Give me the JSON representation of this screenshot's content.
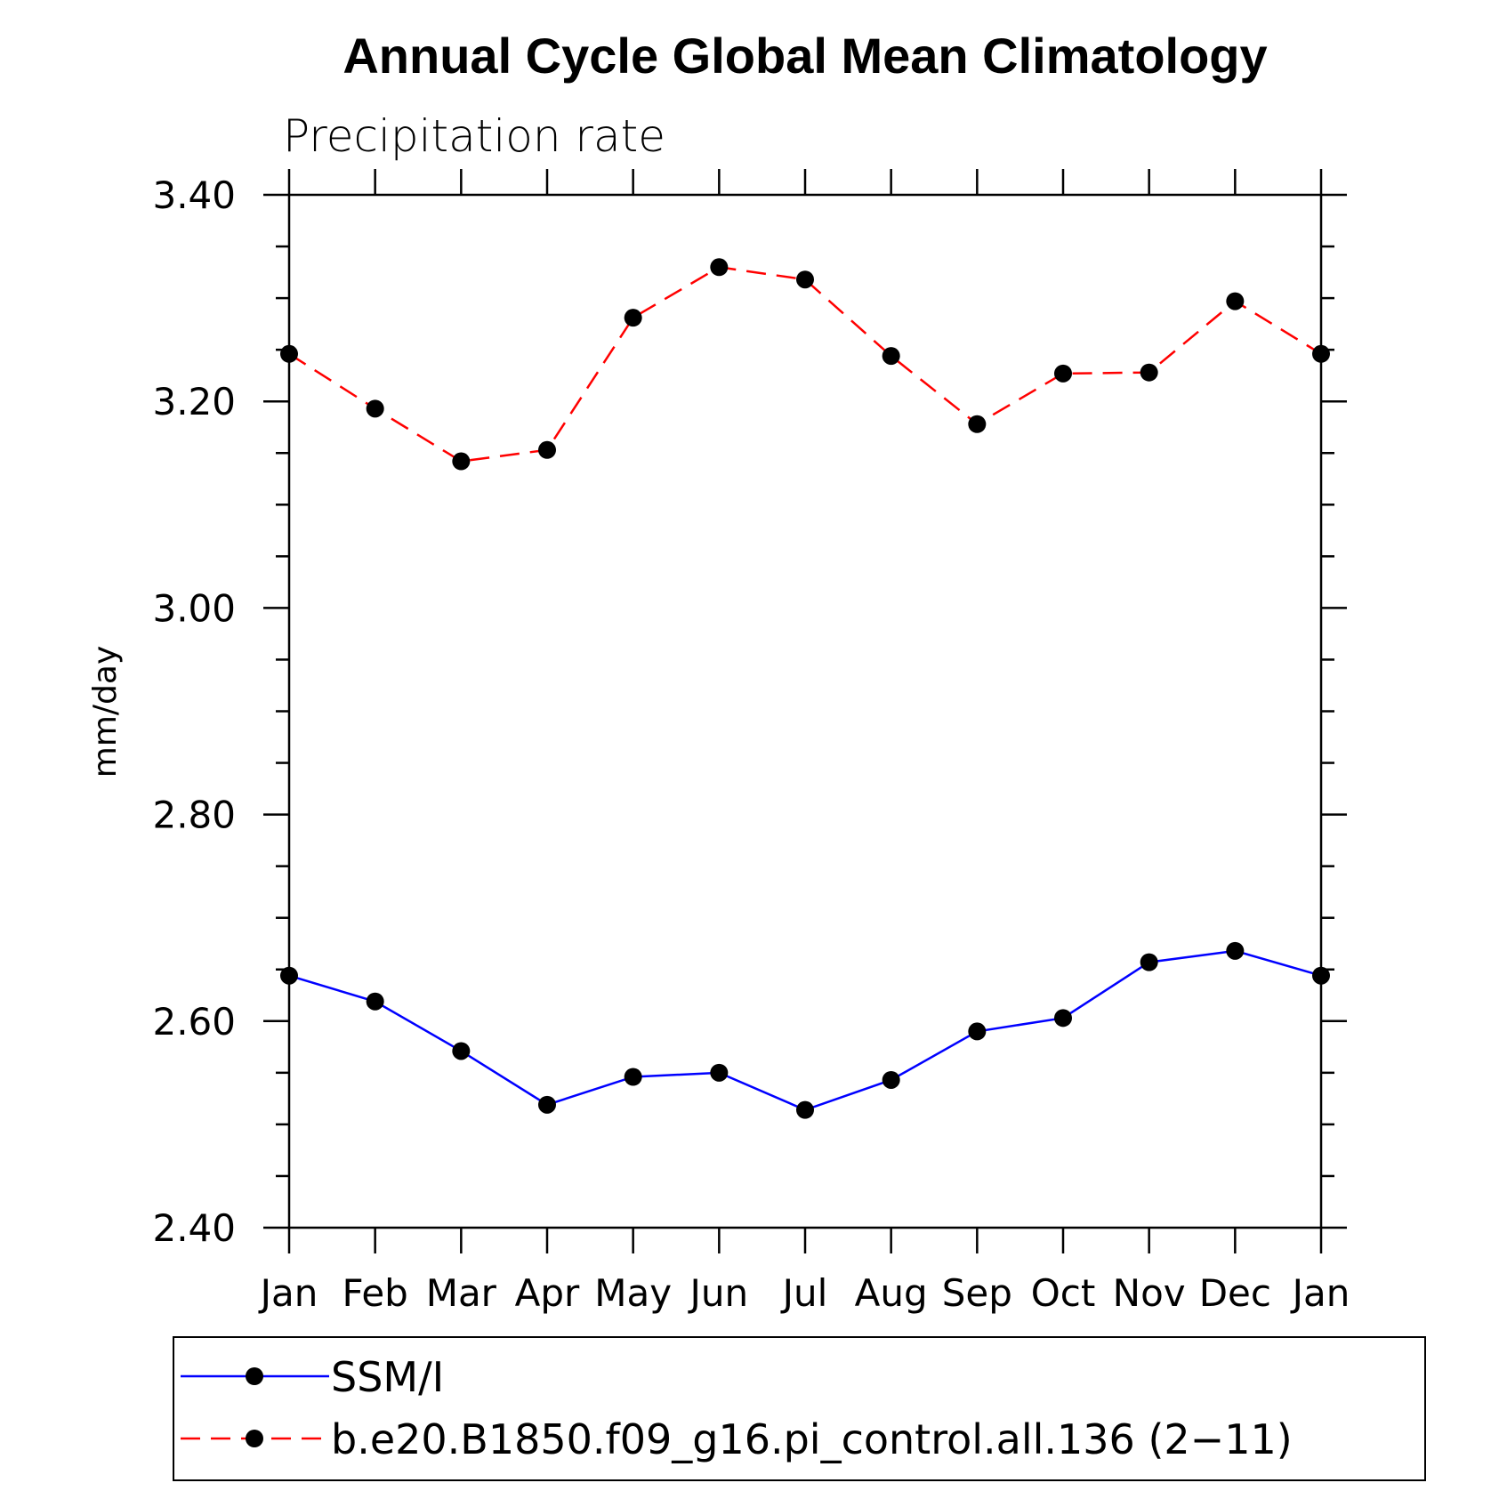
{
  "chart_data": {
    "type": "line",
    "title": "Annual Cycle Global Mean Climatology",
    "subtitle": "Precipitation rate",
    "xlabel": "",
    "ylabel": "mm/day",
    "categories": [
      "Jan",
      "Feb",
      "Mar",
      "Apr",
      "May",
      "Jun",
      "Jul",
      "Aug",
      "Sep",
      "Oct",
      "Nov",
      "Dec",
      "Jan"
    ],
    "ylim": [
      2.4,
      3.4
    ],
    "yticks": [
      2.4,
      2.6,
      2.8,
      3.0,
      3.2,
      3.4
    ],
    "ytick_labels": [
      "2.40",
      "2.60",
      "2.80",
      "3.00",
      "3.20",
      "3.40"
    ],
    "grid": false,
    "legend_position": "bottom",
    "series": [
      {
        "name": "SSM/I",
        "color": "#0000ff",
        "line_style": "solid",
        "marker": "filled-circle",
        "values": [
          2.644,
          2.619,
          2.571,
          2.519,
          2.546,
          2.55,
          2.514,
          2.543,
          2.59,
          2.603,
          2.657,
          2.668,
          2.644
        ]
      },
      {
        "name": "b.e20.B1850.f09_g16.pi_control.all.136 (2−11)",
        "color": "#ff0000",
        "line_style": "dashed",
        "marker": "filled-circle",
        "values": [
          3.246,
          3.193,
          3.142,
          3.153,
          3.281,
          3.33,
          3.318,
          3.244,
          3.178,
          3.227,
          3.228,
          3.297,
          3.246
        ]
      }
    ]
  }
}
